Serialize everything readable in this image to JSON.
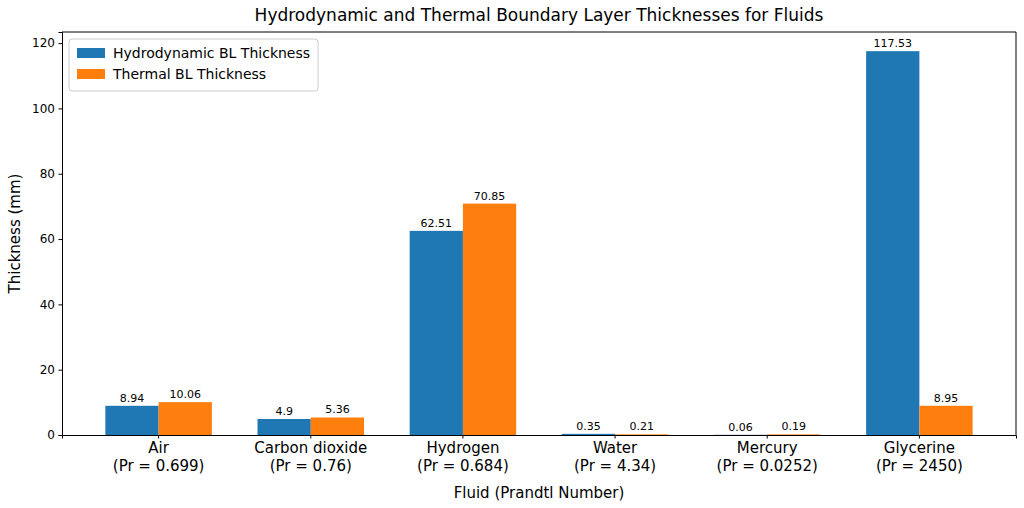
{
  "chart_data": {
    "type": "bar",
    "title": "Hydrodynamic and Thermal Boundary Layer Thicknesses for Fluids",
    "x_label": "Fluid (Prandtl Number)",
    "y_label": "Thickness (mm)",
    "categories": [
      "Air\n(Pr = 0.699)",
      "Carbon dioxide\n(Pr = 0.76)",
      "Hydrogen\n(Pr = 0.684)",
      "Water\n(Pr = 4.34)",
      "Mercury\n(Pr = 0.0252)",
      "Glycerine\n(Pr = 2450)"
    ],
    "series": [
      {
        "name": "Hydrodynamic BL Thickness",
        "color": "#1f77b4",
        "values": [
          8.94,
          4.9,
          62.51,
          0.35,
          0.06,
          117.53
        ]
      },
      {
        "name": "Thermal BL Thickness",
        "color": "#ff7f0e",
        "values": [
          10.06,
          5.36,
          70.85,
          0.21,
          0.19,
          8.95
        ]
      }
    ],
    "ylim": [
      0,
      123.4
    ],
    "yticks": [
      0,
      20,
      40,
      60,
      80,
      100,
      120
    ],
    "grid": false,
    "legend": "upper left",
    "data_labels": true
  }
}
